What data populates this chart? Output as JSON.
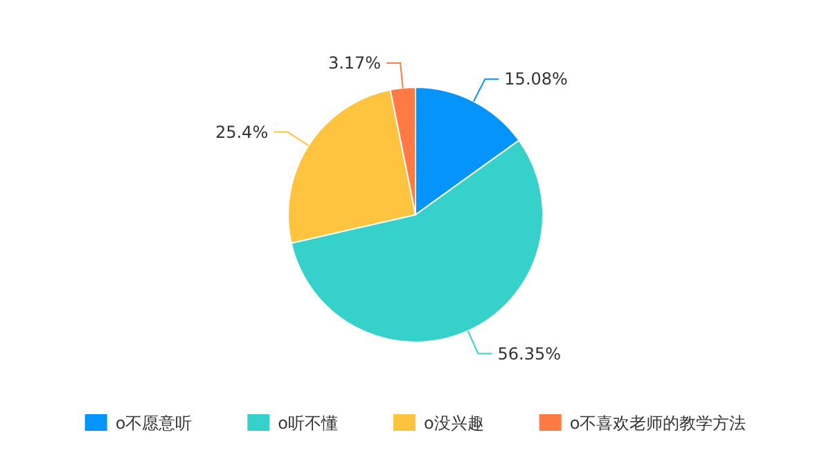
{
  "chart_data": {
    "type": "pie",
    "categories": [
      "o不愿意听",
      "o听不懂",
      "o没兴趣",
      "o不喜欢老师的教学方法"
    ],
    "values": [
      15.08,
      56.35,
      25.4,
      3.17
    ],
    "value_labels": [
      "15.08%",
      "56.35%",
      "25.4%",
      "3.17%"
    ],
    "colors": [
      "#0494fc",
      "#36d1cb",
      "#fec43f",
      "#ff7a45"
    ],
    "legend": "bottom"
  }
}
